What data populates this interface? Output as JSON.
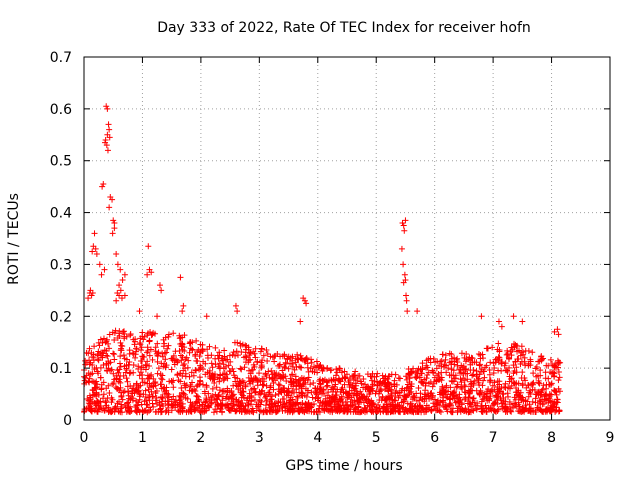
{
  "chart_data": {
    "type": "scatter",
    "title": "Day 333 of 2022, Rate Of TEC Index for receiver hofn",
    "xlabel": "GPS time / hours",
    "ylabel": "ROTI / TECUs",
    "xlim": [
      0,
      9
    ],
    "ylim": [
      0,
      0.7
    ],
    "xticks": [
      "0",
      "1",
      "2",
      "3",
      "4",
      "5",
      "6",
      "7",
      "8",
      "9"
    ],
    "yticks": [
      "0",
      "0.1",
      "0.2",
      "0.3",
      "0.4",
      "0.5",
      "0.6",
      "0.7"
    ],
    "grid": true,
    "marker": "plus",
    "color": "#ff0000",
    "background_series": {
      "x_range": [
        0,
        8.15
      ],
      "envelope": [
        [
          0.0,
          0.13
        ],
        [
          0.3,
          0.16
        ],
        [
          0.5,
          0.18
        ],
        [
          0.8,
          0.17
        ],
        [
          1.0,
          0.17
        ],
        [
          1.3,
          0.17
        ],
        [
          1.6,
          0.17
        ],
        [
          2.0,
          0.15
        ],
        [
          2.3,
          0.14
        ],
        [
          2.6,
          0.15
        ],
        [
          3.0,
          0.14
        ],
        [
          3.3,
          0.13
        ],
        [
          3.6,
          0.13
        ],
        [
          3.9,
          0.12
        ],
        [
          4.2,
          0.1
        ],
        [
          4.5,
          0.1
        ],
        [
          4.8,
          0.09
        ],
        [
          5.0,
          0.09
        ],
        [
          5.3,
          0.09
        ],
        [
          5.6,
          0.1
        ],
        [
          5.9,
          0.12
        ],
        [
          6.2,
          0.13
        ],
        [
          6.5,
          0.13
        ],
        [
          6.8,
          0.13
        ],
        [
          7.0,
          0.15
        ],
        [
          7.3,
          0.15
        ],
        [
          7.6,
          0.14
        ],
        [
          7.9,
          0.12
        ],
        [
          8.15,
          0.12
        ]
      ],
      "floor": 0.015
    },
    "notable_points": [
      [
        0.38,
        0.605
      ],
      [
        0.4,
        0.6
      ],
      [
        0.42,
        0.57
      ],
      [
        0.4,
        0.55
      ],
      [
        0.37,
        0.54
      ],
      [
        0.43,
        0.56
      ],
      [
        0.39,
        0.53
      ],
      [
        0.41,
        0.52
      ],
      [
        0.44,
        0.545
      ],
      [
        0.36,
        0.535
      ],
      [
        0.33,
        0.455
      ],
      [
        0.31,
        0.45
      ],
      [
        0.45,
        0.43
      ],
      [
        0.48,
        0.425
      ],
      [
        0.43,
        0.41
      ],
      [
        0.5,
        0.385
      ],
      [
        0.52,
        0.37
      ],
      [
        0.49,
        0.36
      ],
      [
        0.52,
        0.38
      ],
      [
        0.18,
        0.36
      ],
      [
        0.16,
        0.335
      ],
      [
        0.2,
        0.33
      ],
      [
        0.14,
        0.325
      ],
      [
        0.22,
        0.32
      ],
      [
        0.27,
        0.3
      ],
      [
        0.3,
        0.28
      ],
      [
        0.35,
        0.29
      ],
      [
        0.55,
        0.32
      ],
      [
        0.58,
        0.3
      ],
      [
        0.62,
        0.29
      ],
      [
        0.66,
        0.27
      ],
      [
        0.7,
        0.28
      ],
      [
        0.6,
        0.26
      ],
      [
        0.63,
        0.25
      ],
      [
        0.1,
        0.245
      ],
      [
        0.13,
        0.24
      ],
      [
        0.07,
        0.235
      ],
      [
        0.11,
        0.25
      ],
      [
        0.15,
        0.245
      ],
      [
        0.57,
        0.245
      ],
      [
        0.6,
        0.24
      ],
      [
        0.65,
        0.235
      ],
      [
        0.7,
        0.24
      ],
      [
        0.55,
        0.23
      ],
      [
        1.1,
        0.335
      ],
      [
        1.12,
        0.29
      ],
      [
        1.08,
        0.28
      ],
      [
        1.15,
        0.285
      ],
      [
        1.3,
        0.26
      ],
      [
        1.32,
        0.25
      ],
      [
        1.65,
        0.275
      ],
      [
        1.7,
        0.22
      ],
      [
        1.68,
        0.21
      ],
      [
        5.45,
        0.38
      ],
      [
        5.47,
        0.375
      ],
      [
        5.5,
        0.385
      ],
      [
        5.48,
        0.365
      ],
      [
        5.44,
        0.33
      ],
      [
        5.46,
        0.3
      ],
      [
        5.49,
        0.28
      ],
      [
        5.5,
        0.27
      ],
      [
        5.47,
        0.265
      ],
      [
        5.51,
        0.24
      ],
      [
        5.52,
        0.23
      ],
      [
        5.53,
        0.21
      ],
      [
        5.7,
        0.21
      ],
      [
        3.75,
        0.235
      ],
      [
        3.78,
        0.23
      ],
      [
        3.8,
        0.225
      ],
      [
        3.7,
        0.19
      ],
      [
        2.6,
        0.22
      ],
      [
        2.62,
        0.21
      ],
      [
        2.1,
        0.2
      ],
      [
        1.25,
        0.2
      ],
      [
        0.95,
        0.21
      ],
      [
        6.8,
        0.2
      ],
      [
        7.35,
        0.2
      ],
      [
        7.5,
        0.19
      ],
      [
        7.1,
        0.19
      ],
      [
        7.15,
        0.18
      ],
      [
        8.1,
        0.175
      ],
      [
        8.12,
        0.165
      ],
      [
        8.05,
        0.17
      ]
    ]
  }
}
